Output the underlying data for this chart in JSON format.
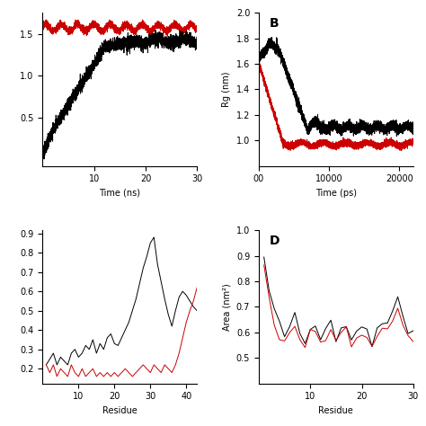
{
  "panel_A": {
    "xlabel": "Time (ns)",
    "ylabel": "",
    "xlim": [
      0,
      30
    ],
    "ylim": [
      0.0,
      1.8
    ],
    "xticks": [
      10,
      20,
      30
    ],
    "yticks": [
      0.5,
      1.0,
      1.5
    ]
  },
  "panel_B": {
    "label": "B",
    "xlabel": "Time (ps)",
    "ylabel": "Rg (nm)",
    "xlim": [
      0,
      22000
    ],
    "ylim": [
      0.8,
      2.0
    ],
    "xticks": [
      0,
      10000,
      20000
    ],
    "xticklabels": [
      "00",
      "10000",
      "20000"
    ],
    "yticks": [
      1.0,
      1.2,
      1.4,
      1.6,
      1.8,
      2.0
    ],
    "ytop_extra": 2.0
  },
  "panel_C": {
    "xlabel": "Residue",
    "ylabel": "",
    "xlim": [
      0,
      43
    ],
    "xticks": [
      10,
      20,
      30,
      40
    ]
  },
  "panel_D": {
    "label": "D",
    "xlabel": "Residue",
    "ylabel": "Area (nm²)",
    "xlim": [
      0,
      30
    ],
    "ylim": [
      0.4,
      1.0
    ],
    "xticks": [
      10,
      20,
      30
    ],
    "yticks": [
      0.5,
      0.6,
      0.7,
      0.8,
      0.9,
      1.0
    ]
  },
  "black_color": "#000000",
  "red_color": "#cc0000",
  "linewidth": 0.7,
  "background": "#ffffff"
}
